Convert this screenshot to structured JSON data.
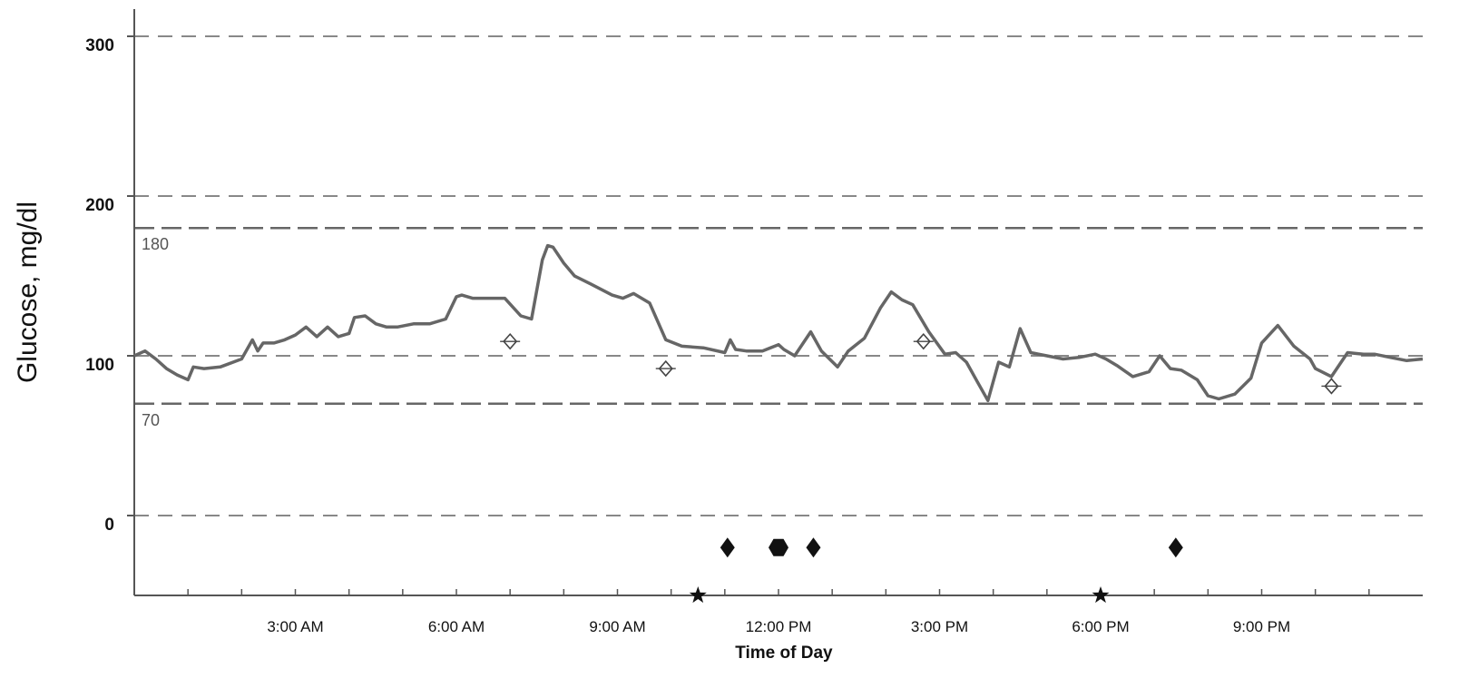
{
  "chart_data": {
    "type": "line",
    "title": "",
    "xlabel": "Time of Day",
    "ylabel": "Glucose, mg/dl",
    "ylim": [
      -50,
      310
    ],
    "xlim_hours": [
      0,
      24
    ],
    "yticks": [
      0,
      100,
      200,
      300
    ],
    "ytick_labels": [
      "0",
      "100",
      "200",
      "300"
    ],
    "xticks_hours": [
      3,
      6,
      9,
      12,
      15,
      18,
      21
    ],
    "xtick_labels": [
      "3:00 AM",
      "6:00 AM",
      "9:00 AM",
      "12:00 PM",
      "3:00 PM",
      "6:00 PM",
      "9:00 PM"
    ],
    "grid": {
      "dashed_y": [
        0,
        100,
        200,
        300
      ]
    },
    "reference_lines": [
      {
        "y": 180,
        "label": "180"
      },
      {
        "y": 70,
        "label": "70"
      }
    ],
    "colors": {
      "line": "#666666",
      "grid": "#888888",
      "axis": "#555555",
      "markers": "#111111"
    },
    "series": [
      {
        "name": "",
        "x_hours": [
          0,
          0.2,
          0.4,
          0.6,
          0.8,
          1.0,
          1.1,
          1.3,
          1.6,
          2.0,
          2.2,
          2.3,
          2.4,
          2.6,
          2.8,
          3.0,
          3.2,
          3.4,
          3.6,
          3.8,
          4.0,
          4.1,
          4.3,
          4.5,
          4.7,
          4.9,
          5.2,
          5.5,
          5.8,
          6.0,
          6.1,
          6.3,
          6.6,
          6.9,
          7.2,
          7.4,
          7.6,
          7.7,
          7.8,
          8.0,
          8.2,
          8.5,
          8.9,
          9.1,
          9.3,
          9.6,
          9.9,
          10.2,
          10.6,
          11.0,
          11.1,
          11.2,
          11.4,
          11.7,
          12.0,
          12.1,
          12.3,
          12.6,
          12.8,
          13.1,
          13.3,
          13.6,
          13.9,
          14.1,
          14.3,
          14.5,
          14.8,
          15.1,
          15.3,
          15.5,
          15.7,
          15.9,
          16.1,
          16.3,
          16.5,
          16.7,
          17.0,
          17.3,
          17.6,
          17.9,
          18.1,
          18.3,
          18.6,
          18.9,
          19.1,
          19.3,
          19.5,
          19.8,
          20.0,
          20.2,
          20.5,
          20.8,
          21.0,
          21.3,
          21.6,
          21.9,
          22.0,
          22.3,
          22.6,
          22.9,
          23.1,
          23.4,
          23.7,
          24.0
        ],
        "y": [
          100,
          103,
          98,
          92,
          88,
          85,
          93,
          92,
          93,
          98,
          110,
          103,
          108,
          108,
          110,
          113,
          118,
          112,
          118,
          112,
          114,
          124,
          125,
          120,
          118,
          118,
          120,
          120,
          123,
          137,
          138,
          136,
          136,
          136,
          125,
          123,
          160,
          169,
          168,
          158,
          150,
          145,
          138,
          136,
          139,
          133,
          110,
          106,
          105,
          102,
          110,
          104,
          103,
          103,
          107,
          104,
          100,
          115,
          103,
          93,
          103,
          111,
          130,
          140,
          135,
          132,
          115,
          101,
          102,
          96,
          84,
          72,
          96,
          93,
          117,
          102,
          100,
          98,
          99,
          101,
          98,
          94,
          87,
          90,
          100,
          92,
          91,
          85,
          75,
          73,
          76,
          86,
          108,
          119,
          106,
          98,
          92,
          87,
          102,
          101,
          101,
          99,
          97,
          98
        ]
      }
    ],
    "markers": [
      {
        "symbol": "open-diamond",
        "x_hours": 7.0,
        "y": 109
      },
      {
        "symbol": "open-diamond",
        "x_hours": 9.9,
        "y": 92
      },
      {
        "symbol": "open-diamond",
        "x_hours": 14.7,
        "y": 109
      },
      {
        "symbol": "open-diamond",
        "x_hours": 22.3,
        "y": 81
      },
      {
        "symbol": "filled-diamond",
        "x_hours": 11.05,
        "y": -20
      },
      {
        "symbol": "filled-hexagon",
        "x_hours": 12.0,
        "y": -20
      },
      {
        "symbol": "filled-diamond",
        "x_hours": 12.65,
        "y": -20
      },
      {
        "symbol": "filled-diamond",
        "x_hours": 19.4,
        "y": -20
      },
      {
        "symbol": "star",
        "x_hours": 10.5,
        "y": -50
      },
      {
        "symbol": "star",
        "x_hours": 18.0,
        "y": -50
      }
    ]
  }
}
